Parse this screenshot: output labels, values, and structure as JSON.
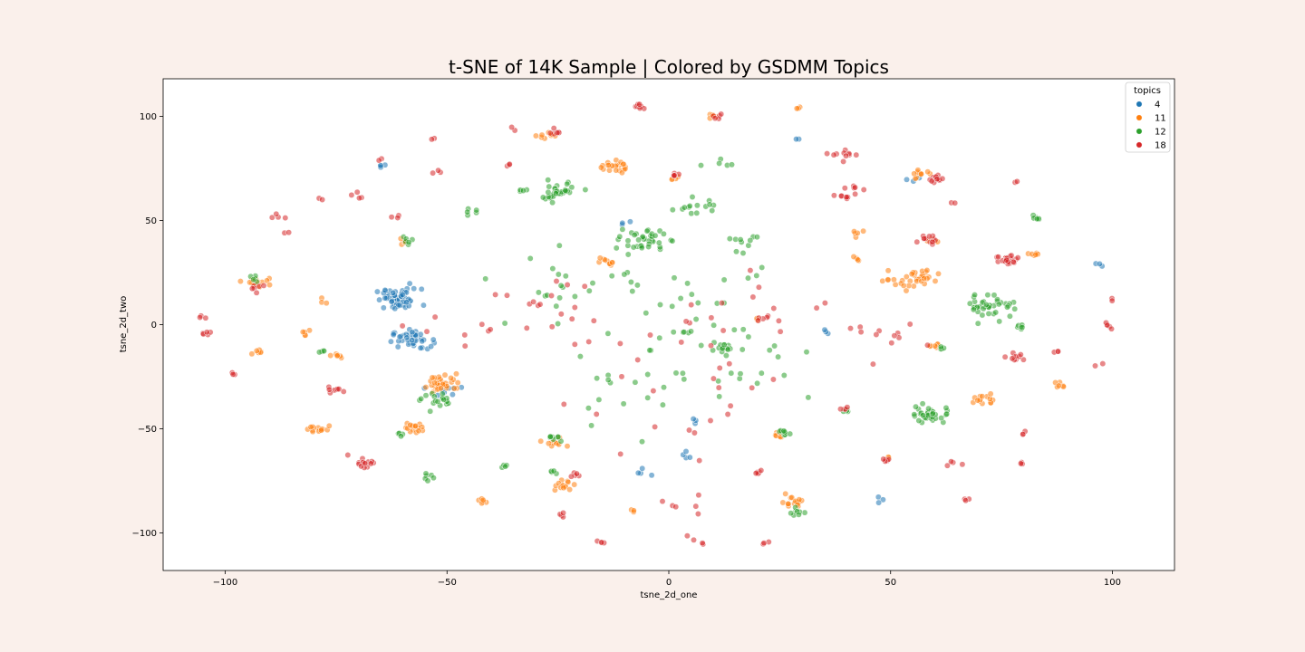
{
  "chart_data": {
    "type": "scatter",
    "title": "t-SNE of 14K Sample | Colored by GSDMM Topics",
    "xlabel": "tsne_2d_one",
    "ylabel": "tsne_2d_two",
    "xlim": [
      -114,
      114
    ],
    "ylim": [
      -118,
      118
    ],
    "x_ticks": [
      -100,
      -50,
      0,
      50,
      100
    ],
    "x_tick_labels": [
      "−100",
      "−50",
      "0",
      "50",
      "100"
    ],
    "y_ticks": [
      -100,
      -50,
      0,
      50,
      100
    ],
    "y_tick_labels": [
      "−100",
      "−50",
      "0",
      "50",
      "100"
    ],
    "grid": false,
    "legend": {
      "title": "topics",
      "placement": "top-right"
    },
    "series": [
      {
        "name": "4",
        "color": "#1f77b4",
        "clusters": [
          {
            "x": -61,
            "y": 12,
            "spread": 2.6,
            "n": 55
          },
          {
            "x": -58,
            "y": -7,
            "spread": 2.2,
            "n": 40
          },
          {
            "x": -51,
            "y": -32,
            "spread": 1.6,
            "n": 8
          },
          {
            "x": -65,
            "y": 76,
            "spread": 0.8,
            "n": 4
          },
          {
            "x": 97,
            "y": 29,
            "spread": 0.6,
            "n": 3
          },
          {
            "x": 4,
            "y": -63,
            "spread": 1.2,
            "n": 4
          },
          {
            "x": -5,
            "y": -71,
            "spread": 1.0,
            "n": 4
          },
          {
            "x": 6,
            "y": -46,
            "spread": 1.0,
            "n": 3
          },
          {
            "x": 29,
            "y": 89,
            "spread": 0.5,
            "n": 2
          },
          {
            "x": 55,
            "y": 70,
            "spread": 0.8,
            "n": 3
          },
          {
            "x": 36,
            "y": -3,
            "spread": 0.8,
            "n": 3
          },
          {
            "x": 48,
            "y": -84,
            "spread": 0.8,
            "n": 3
          },
          {
            "x": -10,
            "y": 48,
            "spread": 1.2,
            "n": 3
          }
        ]
      },
      {
        "name": "11",
        "color": "#ff7f0e",
        "clusters": [
          {
            "x": -92,
            "y": 21,
            "spread": 1.4,
            "n": 14
          },
          {
            "x": -51,
            "y": -28,
            "spread": 2.2,
            "n": 36
          },
          {
            "x": -57,
            "y": -49,
            "spread": 1.4,
            "n": 16
          },
          {
            "x": -79,
            "y": -50,
            "spread": 1.2,
            "n": 14
          },
          {
            "x": -13,
            "y": 76,
            "spread": 1.6,
            "n": 22
          },
          {
            "x": -28,
            "y": 91,
            "spread": 1.0,
            "n": 8
          },
          {
            "x": 10,
            "y": 100,
            "spread": 0.6,
            "n": 6
          },
          {
            "x": 56,
            "y": 22,
            "spread": 2.4,
            "n": 30
          },
          {
            "x": 56,
            "y": 72,
            "spread": 1.2,
            "n": 10
          },
          {
            "x": 71,
            "y": -36,
            "spread": 1.4,
            "n": 14
          },
          {
            "x": -24,
            "y": -77,
            "spread": 1.2,
            "n": 14
          },
          {
            "x": 28,
            "y": -85,
            "spread": 1.4,
            "n": 16
          },
          {
            "x": -42,
            "y": -85,
            "spread": 0.8,
            "n": 6
          },
          {
            "x": -26,
            "y": -57,
            "spread": 1.2,
            "n": 10
          },
          {
            "x": -14,
            "y": 30,
            "spread": 1.2,
            "n": 10
          },
          {
            "x": 25,
            "y": -53,
            "spread": 1.0,
            "n": 8
          },
          {
            "x": 83,
            "y": 34,
            "spread": 0.8,
            "n": 6
          },
          {
            "x": 88,
            "y": -29,
            "spread": 0.8,
            "n": 6
          },
          {
            "x": -76,
            "y": -15,
            "spread": 0.8,
            "n": 6
          },
          {
            "x": -92,
            "y": -13,
            "spread": 0.8,
            "n": 6
          },
          {
            "x": -82,
            "y": -3,
            "spread": 0.8,
            "n": 5
          },
          {
            "x": -60,
            "y": 40,
            "spread": 0.8,
            "n": 5
          },
          {
            "x": 42,
            "y": 44,
            "spread": 0.8,
            "n": 5
          },
          {
            "x": 42,
            "y": 32,
            "spread": 0.8,
            "n": 4
          },
          {
            "x": 49,
            "y": 21,
            "spread": 0.6,
            "n": 4
          },
          {
            "x": 60,
            "y": -10,
            "spread": 0.8,
            "n": 6
          },
          {
            "x": 49,
            "y": -64,
            "spread": 0.6,
            "n": 4
          },
          {
            "x": 20,
            "y": 2,
            "spread": 0.6,
            "n": 3
          },
          {
            "x": 1,
            "y": 70,
            "spread": 0.6,
            "n": 4
          },
          {
            "x": 29,
            "y": 104,
            "spread": 0.4,
            "n": 3
          },
          {
            "x": -8,
            "y": -89,
            "spread": 0.6,
            "n": 3
          },
          {
            "x": 60,
            "y": 40,
            "spread": 0.8,
            "n": 4
          },
          {
            "x": -78,
            "y": 11,
            "spread": 0.6,
            "n": 3
          }
        ]
      },
      {
        "name": "12",
        "color": "#2ca02c",
        "clusters": [
          {
            "x": -25,
            "y": 64,
            "spread": 2.4,
            "n": 35
          },
          {
            "x": -6,
            "y": 40,
            "spread": 2.6,
            "n": 40
          },
          {
            "x": 73,
            "y": 9,
            "spread": 2.8,
            "n": 40
          },
          {
            "x": 59,
            "y": -43,
            "spread": 2.4,
            "n": 35
          },
          {
            "x": -52,
            "y": -37,
            "spread": 1.8,
            "n": 18
          },
          {
            "x": 12,
            "y": -12,
            "spread": 1.2,
            "n": 14
          },
          {
            "x": 26,
            "y": -52,
            "spread": 1.0,
            "n": 10
          },
          {
            "x": 29,
            "y": -90,
            "spread": 0.8,
            "n": 8
          },
          {
            "x": -26,
            "y": -55,
            "spread": 0.8,
            "n": 8
          },
          {
            "x": 82,
            "y": 51,
            "spread": 0.8,
            "n": 6
          },
          {
            "x": 79,
            "y": -1,
            "spread": 0.8,
            "n": 6
          },
          {
            "x": -59,
            "y": 40,
            "spread": 0.8,
            "n": 6
          },
          {
            "x": -54,
            "y": -73,
            "spread": 0.8,
            "n": 6
          },
          {
            "x": -45,
            "y": 54,
            "spread": 0.8,
            "n": 5
          },
          {
            "x": -94,
            "y": 22,
            "spread": 0.8,
            "n": 5
          },
          {
            "x": -78,
            "y": -13,
            "spread": 0.6,
            "n": 4
          },
          {
            "x": -61,
            "y": -52,
            "spread": 0.6,
            "n": 4
          },
          {
            "x": -33,
            "y": 64,
            "spread": 0.6,
            "n": 4
          },
          {
            "x": 62,
            "y": -11,
            "spread": 0.6,
            "n": 4
          },
          {
            "x": 5,
            "y": 55,
            "spread": 3.0,
            "n": 14
          },
          {
            "x": 18,
            "y": 40,
            "spread": 3.0,
            "n": 10
          },
          {
            "x": -24,
            "y": 20,
            "spread": 8.0,
            "n": 20
          },
          {
            "x": 5,
            "y": 10,
            "spread": 10.0,
            "n": 26
          },
          {
            "x": 20,
            "y": -20,
            "spread": 10.0,
            "n": 18
          },
          {
            "x": -10,
            "y": -30,
            "spread": 10.0,
            "n": 18
          },
          {
            "x": 12,
            "y": 80,
            "spread": 2.0,
            "n": 5
          },
          {
            "x": 40,
            "y": -41,
            "spread": 0.6,
            "n": 4
          },
          {
            "x": -26,
            "y": -71,
            "spread": 0.6,
            "n": 4
          },
          {
            "x": -37,
            "y": -68,
            "spread": 0.6,
            "n": 4
          },
          {
            "x": 4,
            "y": -4,
            "spread": 0.8,
            "n": 4
          }
        ]
      },
      {
        "name": "18",
        "color": "#d62728",
        "clusters": [
          {
            "x": 77,
            "y": 31,
            "spread": 1.6,
            "n": 24
          },
          {
            "x": 60,
            "y": 70,
            "spread": 1.0,
            "n": 12
          },
          {
            "x": 59,
            "y": 41,
            "spread": 1.2,
            "n": 12
          },
          {
            "x": 78,
            "y": -15,
            "spread": 1.0,
            "n": 10
          },
          {
            "x": -69,
            "y": -66,
            "spread": 1.6,
            "n": 14
          },
          {
            "x": -25,
            "y": 92,
            "spread": 0.8,
            "n": 6
          },
          {
            "x": -7,
            "y": 105,
            "spread": 0.8,
            "n": 8
          },
          {
            "x": 11,
            "y": 100,
            "spread": 0.6,
            "n": 5
          },
          {
            "x": -93,
            "y": 18,
            "spread": 0.8,
            "n": 6
          },
          {
            "x": -104,
            "y": -4,
            "spread": 0.6,
            "n": 5
          },
          {
            "x": -98,
            "y": -24,
            "spread": 0.6,
            "n": 3
          },
          {
            "x": -75,
            "y": -31,
            "spread": 1.0,
            "n": 8
          },
          {
            "x": 1,
            "y": 72,
            "spread": 0.8,
            "n": 6
          },
          {
            "x": -21,
            "y": -72,
            "spread": 0.6,
            "n": 5
          },
          {
            "x": 20,
            "y": -71,
            "spread": 0.6,
            "n": 5
          },
          {
            "x": 49,
            "y": -65,
            "spread": 0.6,
            "n": 5
          },
          {
            "x": 40,
            "y": -40,
            "spread": 0.6,
            "n": 4
          },
          {
            "x": -15,
            "y": -104,
            "spread": 0.6,
            "n": 4
          },
          {
            "x": -24,
            "y": -92,
            "spread": 0.6,
            "n": 4
          },
          {
            "x": 80,
            "y": -66,
            "spread": 0.6,
            "n": 3
          },
          {
            "x": 99,
            "y": -1,
            "spread": 0.8,
            "n": 5
          },
          {
            "x": 100,
            "y": 12,
            "spread": 0.4,
            "n": 2
          },
          {
            "x": 40,
            "y": 62,
            "spread": 1.6,
            "n": 10
          },
          {
            "x": 40,
            "y": 82,
            "spread": 1.6,
            "n": 10
          },
          {
            "x": -88,
            "y": 52,
            "spread": 1.0,
            "n": 4
          },
          {
            "x": -78,
            "y": 60,
            "spread": 0.4,
            "n": 2
          },
          {
            "x": -70,
            "y": 62,
            "spread": 1.2,
            "n": 4
          },
          {
            "x": -62,
            "y": 52,
            "spread": 0.6,
            "n": 3
          },
          {
            "x": -65,
            "y": 79,
            "spread": 0.4,
            "n": 2
          },
          {
            "x": -105,
            "y": 3,
            "spread": 1.0,
            "n": 3
          },
          {
            "x": -86,
            "y": 44,
            "spread": 0.4,
            "n": 2
          },
          {
            "x": -26,
            "y": 5,
            "spread": 10.0,
            "n": 20
          },
          {
            "x": 20,
            "y": 5,
            "spread": 10.0,
            "n": 20
          },
          {
            "x": 5,
            "y": -40,
            "spread": 12.0,
            "n": 20
          },
          {
            "x": 50,
            "y": -5,
            "spread": 5.0,
            "n": 12
          },
          {
            "x": -45,
            "y": -5,
            "spread": 5.0,
            "n": 8
          },
          {
            "x": 3,
            "y": -86,
            "spread": 2.0,
            "n": 6
          },
          {
            "x": 5,
            "y": -103,
            "spread": 2.0,
            "n": 4
          },
          {
            "x": 22,
            "y": -105,
            "spread": 0.6,
            "n": 3
          },
          {
            "x": 67,
            "y": -84,
            "spread": 0.4,
            "n": 3
          },
          {
            "x": 42,
            "y": 66,
            "spread": 0.4,
            "n": 3
          },
          {
            "x": 78,
            "y": 69,
            "spread": 0.4,
            "n": 2
          },
          {
            "x": 64,
            "y": 59,
            "spread": 0.4,
            "n": 2
          },
          {
            "x": 80,
            "y": -52,
            "spread": 0.6,
            "n": 3
          },
          {
            "x": 64,
            "y": -67,
            "spread": 0.8,
            "n": 4
          },
          {
            "x": 97,
            "y": -19,
            "spread": 0.8,
            "n": 2
          },
          {
            "x": 87,
            "y": -13,
            "spread": 0.6,
            "n": 3
          },
          {
            "x": -36,
            "y": 77,
            "spread": 0.8,
            "n": 3
          },
          {
            "x": -35,
            "y": 94,
            "spread": 0.4,
            "n": 2
          },
          {
            "x": -53,
            "y": 89,
            "spread": 0.4,
            "n": 2
          },
          {
            "x": -52,
            "y": 73,
            "spread": 0.8,
            "n": 3
          }
        ]
      }
    ]
  }
}
